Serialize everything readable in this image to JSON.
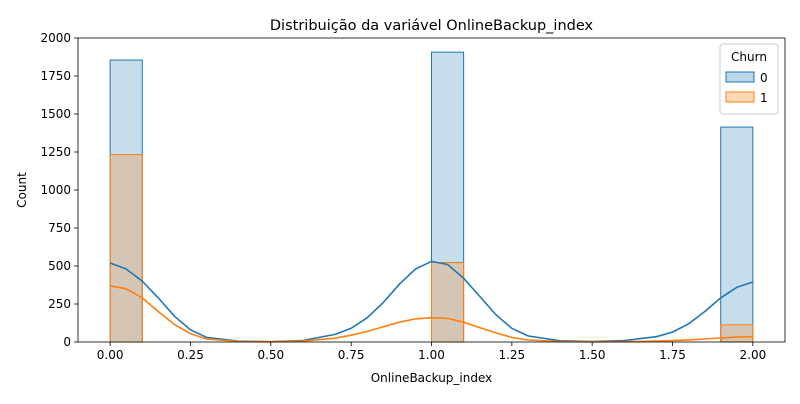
{
  "chart_data": {
    "type": "bar",
    "title": "Distribuição da variável OnlineBackup_index",
    "xlabel": "OnlineBackup_index",
    "ylabel": "Count",
    "xlim": [
      -0.1,
      2.1
    ],
    "ylim": [
      0,
      2000
    ],
    "x_ticks": [
      "0.00",
      "0.25",
      "0.50",
      "0.75",
      "1.00",
      "1.25",
      "1.50",
      "1.75",
      "2.00"
    ],
    "y_ticks": [
      "0",
      "250",
      "500",
      "750",
      "1000",
      "1250",
      "1500",
      "1750",
      "2000"
    ],
    "grid": false,
    "legend": {
      "title": "Churn",
      "placement": "top-right"
    },
    "bin_width": 0.1,
    "series": [
      {
        "name": "0",
        "color": "#1f77b4",
        "bars": [
          {
            "x_start": 0.0,
            "x_end": 0.1,
            "value": 1855
          },
          {
            "x_start": 1.0,
            "x_end": 1.1,
            "value": 1907
          },
          {
            "x_start": 1.9,
            "x_end": 2.0,
            "value": 1414
          }
        ],
        "kde": [
          [
            0.0,
            520
          ],
          [
            0.05,
            480
          ],
          [
            0.1,
            400
          ],
          [
            0.15,
            290
          ],
          [
            0.2,
            170
          ],
          [
            0.25,
            80
          ],
          [
            0.3,
            30
          ],
          [
            0.4,
            5
          ],
          [
            0.5,
            2
          ],
          [
            0.6,
            10
          ],
          [
            0.7,
            50
          ],
          [
            0.75,
            90
          ],
          [
            0.8,
            160
          ],
          [
            0.85,
            260
          ],
          [
            0.9,
            380
          ],
          [
            0.95,
            480
          ],
          [
            1.0,
            530
          ],
          [
            1.05,
            510
          ],
          [
            1.1,
            420
          ],
          [
            1.15,
            300
          ],
          [
            1.2,
            180
          ],
          [
            1.25,
            90
          ],
          [
            1.3,
            40
          ],
          [
            1.4,
            8
          ],
          [
            1.5,
            3
          ],
          [
            1.6,
            10
          ],
          [
            1.7,
            35
          ],
          [
            1.75,
            65
          ],
          [
            1.8,
            120
          ],
          [
            1.85,
            200
          ],
          [
            1.9,
            290
          ],
          [
            1.95,
            360
          ],
          [
            2.0,
            395
          ]
        ]
      },
      {
        "name": "1",
        "color": "#ff7f0e",
        "bars": [
          {
            "x_start": 0.0,
            "x_end": 0.1,
            "value": 1233
          },
          {
            "x_start": 1.0,
            "x_end": 1.1,
            "value": 523
          },
          {
            "x_start": 1.9,
            "x_end": 2.0,
            "value": 113
          }
        ],
        "kde": [
          [
            0.0,
            370
          ],
          [
            0.05,
            350
          ],
          [
            0.1,
            290
          ],
          [
            0.15,
            200
          ],
          [
            0.2,
            115
          ],
          [
            0.25,
            55
          ],
          [
            0.3,
            20
          ],
          [
            0.4,
            3
          ],
          [
            0.5,
            1
          ],
          [
            0.6,
            6
          ],
          [
            0.7,
            25
          ],
          [
            0.75,
            45
          ],
          [
            0.8,
            70
          ],
          [
            0.85,
            100
          ],
          [
            0.9,
            130
          ],
          [
            0.95,
            152
          ],
          [
            1.0,
            160
          ],
          [
            1.05,
            155
          ],
          [
            1.1,
            130
          ],
          [
            1.15,
            95
          ],
          [
            1.2,
            60
          ],
          [
            1.25,
            30
          ],
          [
            1.3,
            13
          ],
          [
            1.4,
            3
          ],
          [
            1.5,
            1
          ],
          [
            1.6,
            2
          ],
          [
            1.7,
            6
          ],
          [
            1.75,
            9
          ],
          [
            1.8,
            14
          ],
          [
            1.85,
            20
          ],
          [
            1.9,
            26
          ],
          [
            1.95,
            32
          ],
          [
            2.0,
            35
          ]
        ]
      }
    ]
  }
}
